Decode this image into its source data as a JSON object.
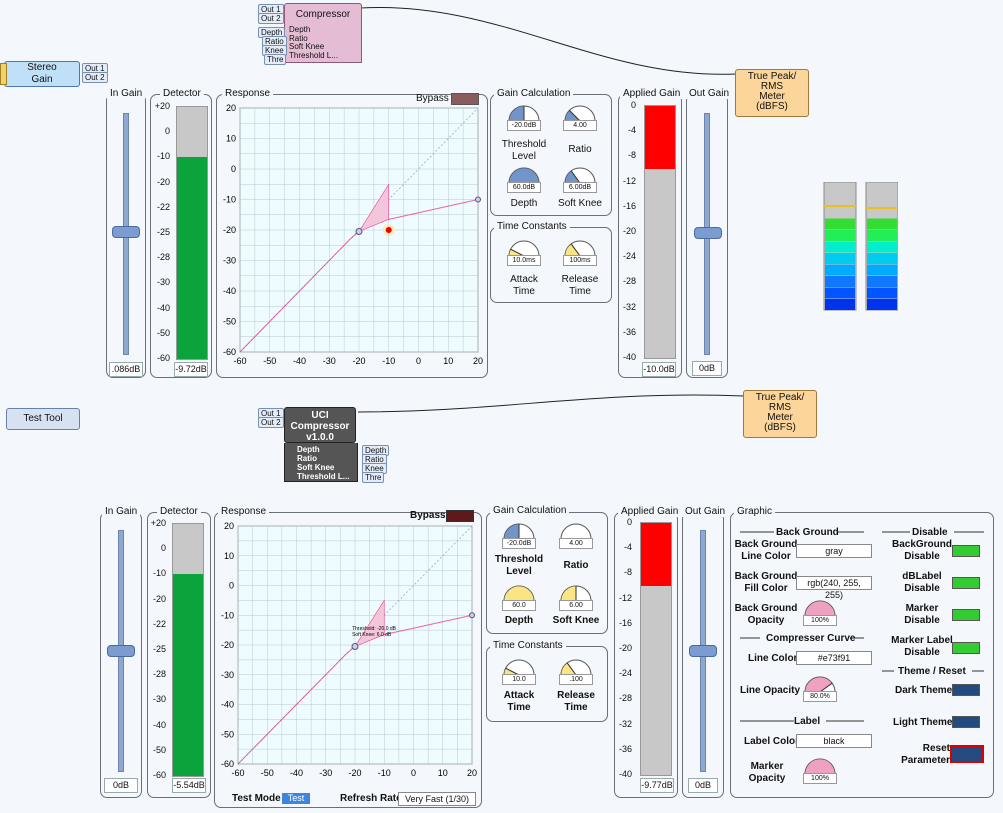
{
  "stereo_gain": {
    "title_1": "Stereo",
    "title_2": "Gain",
    "out1": "Out 1",
    "out2": "Out 2"
  },
  "comp_block": {
    "title": "Compressor",
    "in1": "Out 1",
    "in2": "Out 2",
    "params": [
      "Depth",
      "Ratio",
      "Soft Knee",
      "Threshold L..."
    ],
    "tags": [
      "Depth",
      "Ratio",
      "Knee",
      "Thre"
    ]
  },
  "meter_top": {
    "line1": "True Peak/",
    "line2": "RMS",
    "line3": "Meter",
    "line4": "(dBFS)"
  },
  "meter_bottom": {
    "line1": "True Peak/",
    "line2": "RMS",
    "line3": "Meter",
    "line4": "(dBFS)"
  },
  "test_tool": "Test Tool",
  "uci_block": {
    "title_1": "UCI",
    "title_2": "Compressor",
    "title_3": "v1.0.0",
    "in1": "Out 1",
    "in2": "Out 2",
    "params": [
      "Depth",
      "Ratio",
      "Soft Knee",
      "Threshold L..."
    ],
    "tags": [
      "Depth",
      "Ratio",
      "Knee",
      "Thre"
    ]
  },
  "top": {
    "in_gain": {
      "title": "In Gain",
      "value": ".086dB"
    },
    "detector": {
      "title": "Detector",
      "value": "-9.72dB",
      "ticks": [
        "+20",
        "0",
        "-10",
        "-20",
        "-22",
        "-25",
        "-28",
        "-30",
        "-40",
        "-50",
        "-60"
      ],
      "level": -10
    },
    "response": {
      "title": "Response",
      "bypass": "Bypass",
      "y_ticks": [
        "20",
        "10",
        "0",
        "-10",
        "-20",
        "-30",
        "-40",
        "-50",
        "-60"
      ],
      "x_ticks": [
        "-60",
        "-50",
        "-40",
        "-30",
        "-20",
        "-10",
        "0",
        "10",
        "20"
      ]
    },
    "gain_calc": {
      "title": "Gain Calculation",
      "threshold": {
        "value": "-20.0dB",
        "label_1": "Threshold",
        "label_2": "Level"
      },
      "ratio": {
        "value": "4.00",
        "label": "Ratio"
      },
      "depth": {
        "value": "60.0dB",
        "label": "Depth"
      },
      "soft_knee": {
        "value": "6.00dB",
        "label": "Soft Knee"
      }
    },
    "time_const": {
      "title": "Time Constants",
      "attack": {
        "value": "10.0ms",
        "label_1": "Attack",
        "label_2": "Time"
      },
      "release": {
        "value": "100ms",
        "label_1": "Release",
        "label_2": "Time"
      }
    },
    "applied_gain": {
      "title": "Applied Gain",
      "value": "-10.0dB",
      "ticks": [
        "0",
        "-4",
        "-8",
        "-12",
        "-16",
        "-20",
        "-24",
        "-28",
        "-32",
        "-36",
        "-40"
      ],
      "level": -10
    },
    "out_gain": {
      "title": "Out Gain",
      "value": "0dB"
    }
  },
  "bottom": {
    "in_gain": {
      "title": "In Gain",
      "value": "0dB"
    },
    "detector": {
      "title": "Detector",
      "value": "-5.54dB",
      "ticks": [
        "+20",
        "0",
        "-10",
        "-20",
        "-22",
        "-25",
        "-28",
        "-30",
        "-40",
        "-50",
        "-60"
      ],
      "level": -10
    },
    "response": {
      "title": "Response",
      "bypass": "Bypass",
      "annot_1": "Threshold: -20.0 dB",
      "annot_2": "Soft Knee: 6.0 dB",
      "y_ticks": [
        "20",
        "10",
        "0",
        "-10",
        "-20",
        "-30",
        "-40",
        "-50",
        "-60"
      ],
      "x_ticks": [
        "-60",
        "-50",
        "-40",
        "-30",
        "-20",
        "-10",
        "0",
        "10",
        "20"
      ],
      "test_mode": "Test Mode",
      "test_btn": "Test",
      "refresh": "Refresh Rate",
      "refresh_value": "Very Fast (1/30)"
    },
    "gain_calc": {
      "title": "Gain Calculation",
      "threshold": {
        "value": "-20.0dB",
        "label_1": "Threshold",
        "label_2": "Level"
      },
      "ratio": {
        "value": "4.00",
        "label": "Ratio"
      },
      "depth": {
        "value": "60.0",
        "label": "Depth"
      },
      "soft_knee": {
        "value": "6.00",
        "label": "Soft Knee"
      }
    },
    "time_const": {
      "title": "Time Constants",
      "attack": {
        "value": "10.0",
        "label_1": "Attack",
        "label_2": "Time"
      },
      "release": {
        "value": ".100",
        "label_1": "Release",
        "label_2": "Time"
      }
    },
    "applied_gain": {
      "title": "Applied Gain",
      "value": "-9.77dB",
      "ticks": [
        "0",
        "-4",
        "-8",
        "-12",
        "-16",
        "-20",
        "-24",
        "-28",
        "-32",
        "-36",
        "-40"
      ],
      "level": -10
    },
    "out_gain": {
      "title": "Out Gain",
      "value": "0dB"
    }
  },
  "graphic": {
    "title": "Graphic",
    "background": {
      "title": "Back Ground",
      "line_color_1": "Back Ground",
      "line_color_2": "Line Color",
      "line_color_value": "gray",
      "fill_color_1": "Back Ground",
      "fill_color_2": "Fill Color",
      "fill_color_value": "rgb(240, 255, 255)",
      "opacity_1": "Back Ground",
      "opacity_2": "Opacity",
      "opacity_value": "100%"
    },
    "curve": {
      "title": "Compresser Curve",
      "line_color": "Line Color",
      "line_color_value": "#e73f91",
      "line_opacity": "Line Opacity",
      "line_opacity_value": "80.0%"
    },
    "label": {
      "title": "Label",
      "label_color": "Label Color",
      "label_color_value": "black",
      "marker_opacity_1": "Marker",
      "marker_opacity_2": "Opacity",
      "marker_opacity_value": "100%"
    },
    "disable": {
      "title": "Disable",
      "bg_1": "BackGround",
      "bg_2": "Disable",
      "db_1": "dBLabel",
      "db_2": "Disable",
      "marker_1": "Marker",
      "marker_2": "Disable",
      "mlabel_1": "Marker Label",
      "mlabel_2": "Disable"
    },
    "theme": {
      "title": "Theme / Reset",
      "dark": "Dark Theme",
      "light": "Light Theme",
      "reset_1": "Reset",
      "reset_2": "Parameter"
    }
  },
  "colors": {
    "green_meter": "#0aa33c",
    "red_meter": "#ff0000",
    "pink_curve": "#e73f91",
    "toggle_green": "#33cc33",
    "dark_blue_btn": "#254a80"
  }
}
